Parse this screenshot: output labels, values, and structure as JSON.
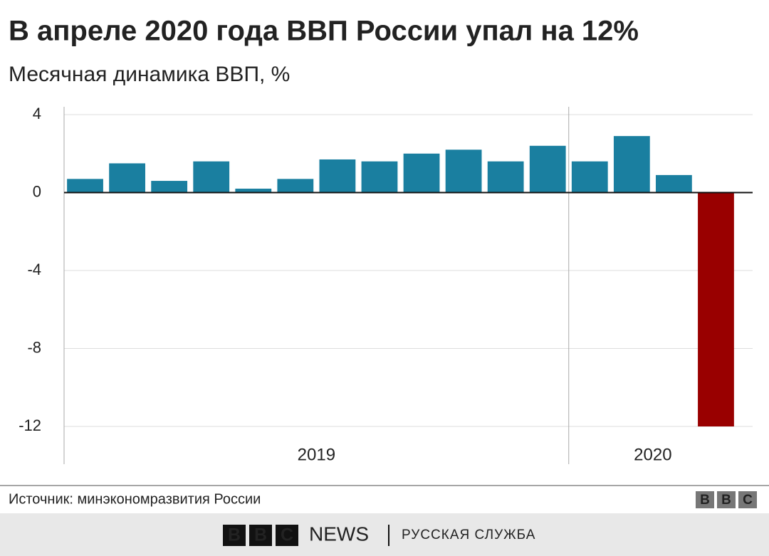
{
  "chart_data": {
    "type": "bar",
    "title": "В апреле 2020 года ВВП России упал на 12%",
    "subtitle": "Месячная динамика ВВП, %",
    "categories": [
      "2019",
      null,
      null,
      null,
      null,
      null,
      null,
      null,
      null,
      null,
      null,
      null,
      "2020",
      null,
      null,
      null
    ],
    "values": [
      0.7,
      1.5,
      0.6,
      1.6,
      0.2,
      0.7,
      1.7,
      1.6,
      2.0,
      2.2,
      1.6,
      2.4,
      1.6,
      2.9,
      0.9,
      -12
    ],
    "colors": [
      "#1a7fa0",
      "#1a7fa0",
      "#1a7fa0",
      "#1a7fa0",
      "#1a7fa0",
      "#1a7fa0",
      "#1a7fa0",
      "#1a7fa0",
      "#1a7fa0",
      "#1a7fa0",
      "#1a7fa0",
      "#1a7fa0",
      "#1a7fa0",
      "#1a7fa0",
      "#1a7fa0",
      "#990000"
    ],
    "ylim": [
      -12,
      4
    ],
    "yticks": [
      4,
      0,
      -4,
      -8,
      -12
    ],
    "grid": true,
    "source": "Источник: минэкономразвития России",
    "logo": "BBC",
    "footer": {
      "brand": "BBC",
      "news": "NEWS",
      "service": "РУССКАЯ СЛУЖБА"
    }
  }
}
